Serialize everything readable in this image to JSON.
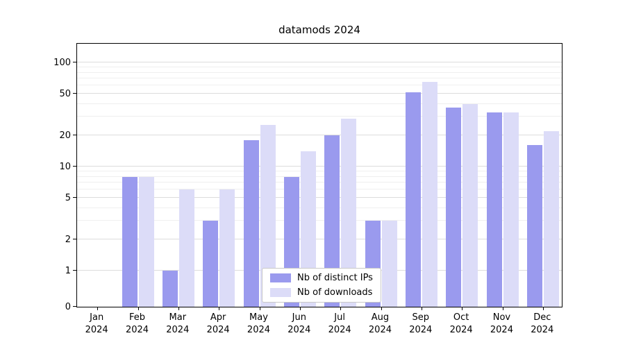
{
  "title": "datamods 2024",
  "legend": {
    "items": [
      "Nb of distinct IPs",
      "Nb of downloads"
    ]
  },
  "chart_data": {
    "type": "bar",
    "title": "datamods 2024",
    "categories": [
      {
        "month": "Jan",
        "year": "2024"
      },
      {
        "month": "Feb",
        "year": "2024"
      },
      {
        "month": "Mar",
        "year": "2024"
      },
      {
        "month": "Apr",
        "year": "2024"
      },
      {
        "month": "May",
        "year": "2024"
      },
      {
        "month": "Jun",
        "year": "2024"
      },
      {
        "month": "Jul",
        "year": "2024"
      },
      {
        "month": "Aug",
        "year": "2024"
      },
      {
        "month": "Sep",
        "year": "2024"
      },
      {
        "month": "Oct",
        "year": "2024"
      },
      {
        "month": "Nov",
        "year": "2024"
      },
      {
        "month": "Dec",
        "year": "2024"
      }
    ],
    "series": [
      {
        "name": "Nb of distinct IPs",
        "color": "#9a9aee",
        "values": [
          0,
          8,
          1,
          3,
          18,
          8,
          20,
          3,
          52,
          37,
          33,
          16
        ]
      },
      {
        "name": "Nb of downloads",
        "color": "#dcdcf8",
        "values": [
          0,
          8,
          6,
          6,
          25,
          14,
          29,
          3,
          65,
          40,
          33,
          22
        ]
      }
    ],
    "y_scale": "symlog",
    "y_ticks": [
      0,
      1,
      2,
      5,
      10,
      20,
      50,
      100
    ],
    "y_minor_ticks": [
      3,
      4,
      6,
      7,
      8,
      9,
      30,
      40,
      60,
      70,
      80,
      90
    ],
    "ylim": [
      0,
      120
    ],
    "grid": true,
    "legend_position": "lower center"
  }
}
